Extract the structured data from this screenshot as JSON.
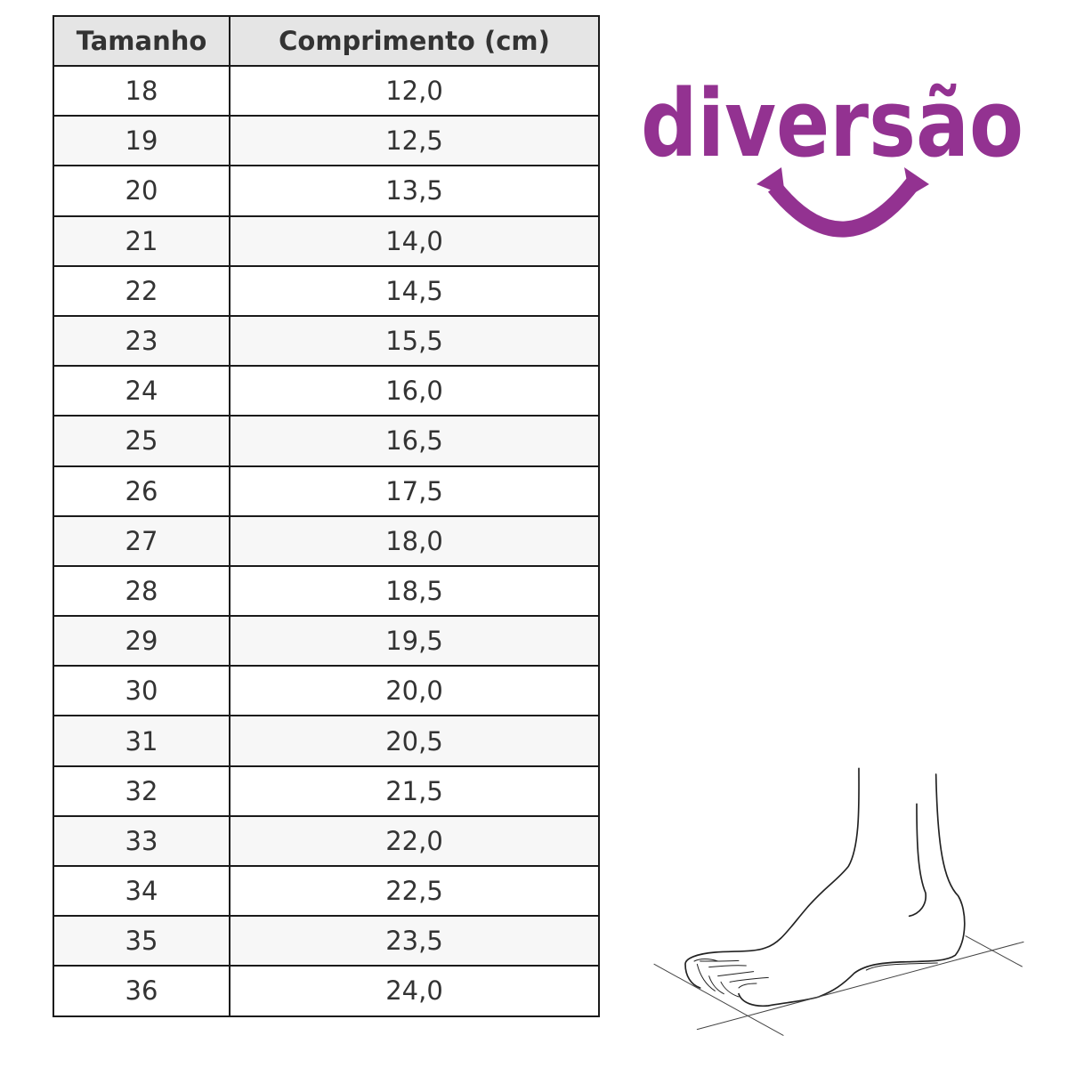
{
  "table": {
    "headers": [
      "Tamanho",
      "Comprimento (cm)"
    ],
    "rows": [
      [
        "18",
        "12,0"
      ],
      [
        "19",
        "12,5"
      ],
      [
        "20",
        "13,5"
      ],
      [
        "21",
        "14,0"
      ],
      [
        "22",
        "14,5"
      ],
      [
        "23",
        "15,5"
      ],
      [
        "24",
        "16,0"
      ],
      [
        "25",
        "16,5"
      ],
      [
        "26",
        "17,5"
      ],
      [
        "27",
        "18,0"
      ],
      [
        "28",
        "18,5"
      ],
      [
        "29",
        "19,5"
      ],
      [
        "30",
        "20,0"
      ],
      [
        "31",
        "20,5"
      ],
      [
        "32",
        "21,5"
      ],
      [
        "33",
        "22,0"
      ],
      [
        "34",
        "22,5"
      ],
      [
        "35",
        "23,5"
      ],
      [
        "36",
        "24,0"
      ]
    ]
  },
  "logo": {
    "text": "diversão",
    "color": "#933291"
  },
  "illustration": {
    "icon": "foot-measurement-icon"
  }
}
